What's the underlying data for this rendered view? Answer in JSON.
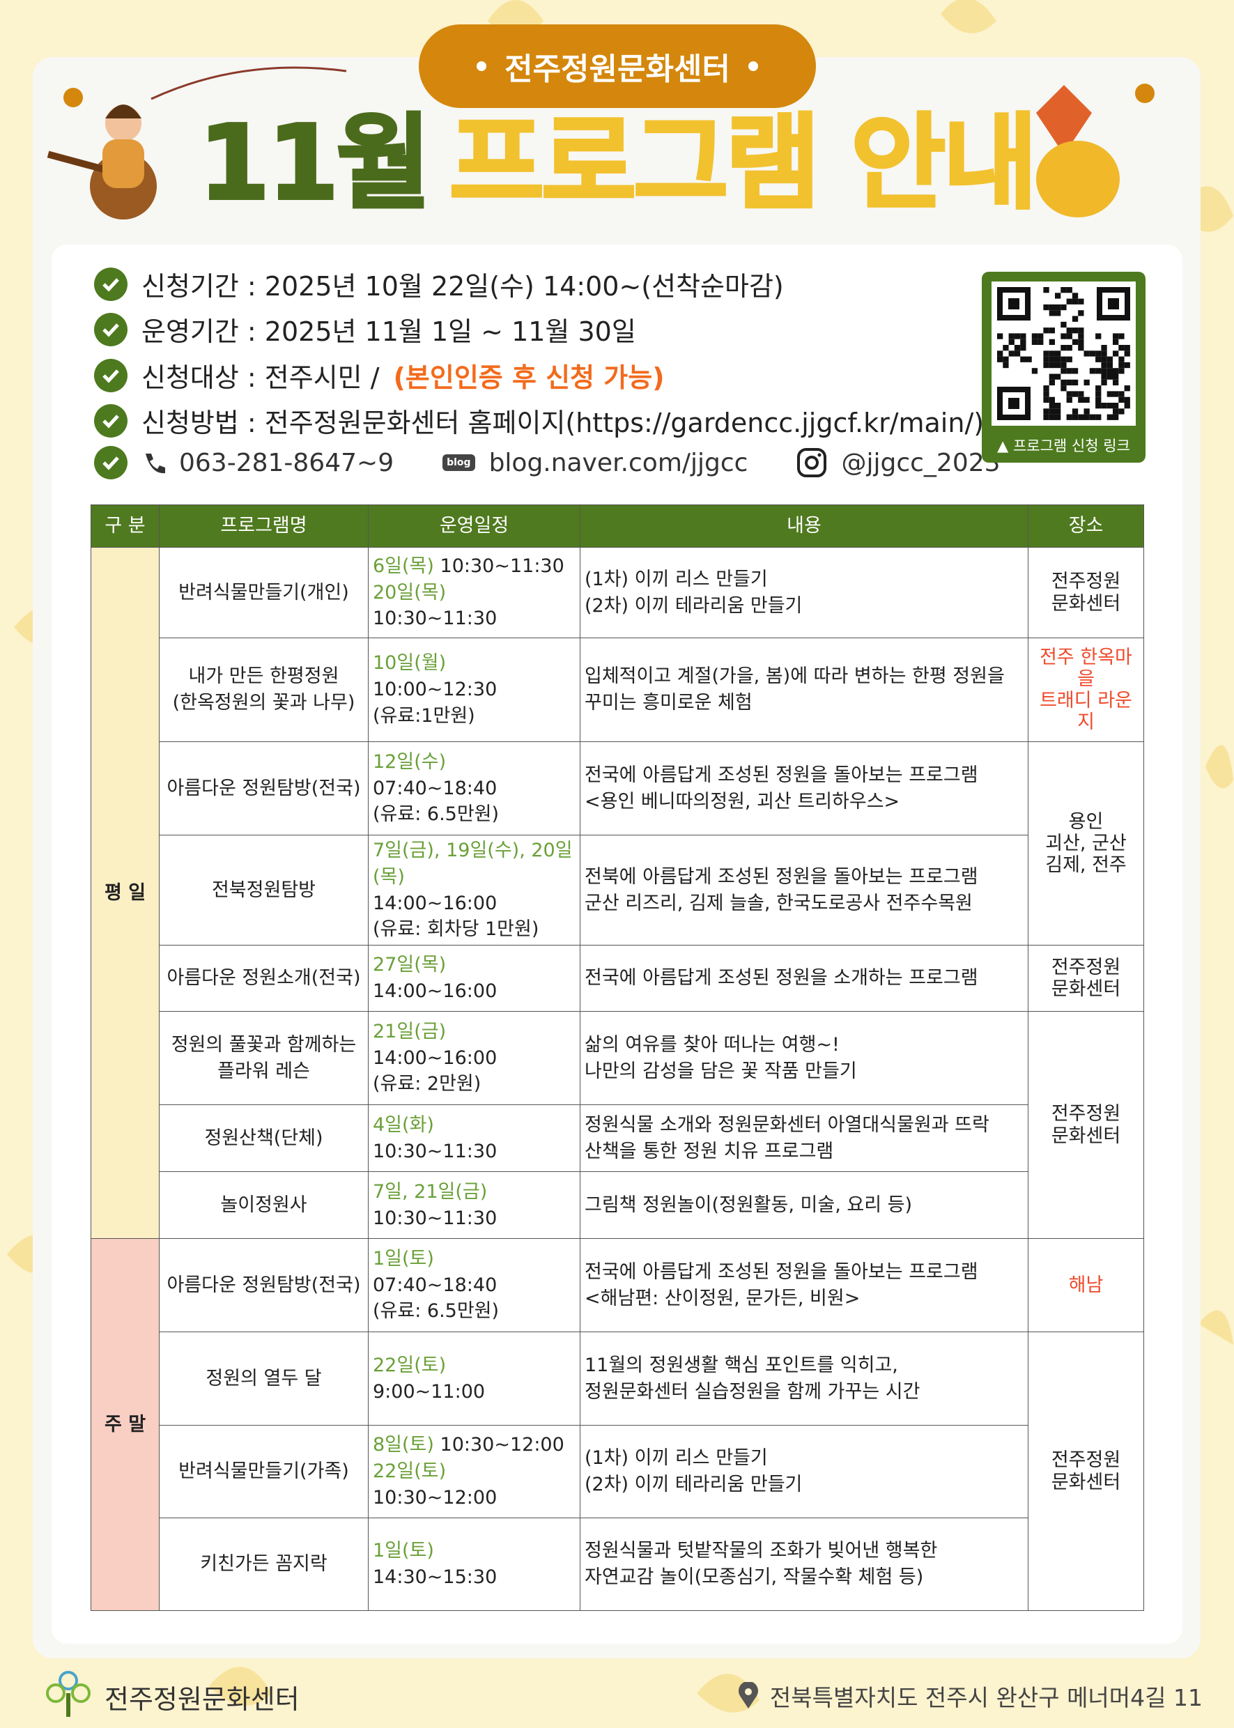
{
  "header": {
    "badge": "전주정원문화센터",
    "title_month": "11월",
    "title_rest": "프로그램 안내"
  },
  "info": [
    {
      "text": "신청기간 : 2025년 10월 22일(수) 14:00~(선착순마감)"
    },
    {
      "text": "운영기간 : 2025년 11월 1일 ~ 11월 30일"
    },
    {
      "text": "신청대상 : 전주시민 /",
      "note": "(본인인증 후 신청 가능)"
    },
    {
      "text": "신청방법 : 전주정원문화센터 홈페이지(https://gardencc.jjgcf.kr/main/)"
    }
  ],
  "contacts": {
    "phone": "063-281-8647~9",
    "blog_icon": "blog",
    "blog": "blog.naver.com/jjgcc",
    "instagram": "@jjgcc_2023"
  },
  "qr_caption": "▲ 프로그램 신청 링크",
  "table": {
    "header": [
      "구 분",
      "프로그램명",
      "운영일정",
      "내용",
      "장소"
    ],
    "groups": [
      {
        "label": "평 일",
        "rows": [
          {
            "name": [
              "반려식물만들기(개인)"
            ],
            "schedule": [
              {
                "date": "6일(목)",
                "text": "10:30~11:30"
              },
              {
                "date": "20일(목)",
                "text": "10:30~11:30"
              }
            ],
            "content": [
              "(1차)  이끼 리스 만들기",
              "(2차)  이끼 테라리움 만들기"
            ],
            "place": {
              "lines": [
                "전주정원",
                "문화센터"
              ]
            }
          },
          {
            "name": [
              "내가 만든 한평정원",
              "(한옥정원의 꽃과 나무)"
            ],
            "schedule": [
              {
                "date": "10일(월)"
              },
              {
                "text": "10:00~12:30"
              },
              {
                "text": "(유료:1만원)"
              }
            ],
            "content": [
              "입체적이고 계절(가을, 봄)에 따라 변하는 한평 정원을",
              "꾸미는 흥미로운 체험"
            ],
            "place": {
              "lines": [
                "전주 한옥마을",
                "트래디 라운지"
              ],
              "color": "#ef4b2c"
            }
          },
          {
            "name": [
              "아름다운 정원탐방(전국)"
            ],
            "schedule": [
              {
                "date": "12일(수)"
              },
              {
                "text": "07:40~18:40"
              },
              {
                "text": "(유료: 6.5만원)"
              }
            ],
            "content": [
              "전국에 아름답게 조성된 정원을 돌아보는 프로그램",
              "<용인 베니따의정원, 괴산 트리하우스>"
            ],
            "place": {
              "lines": [
                "용인",
                "괴산, 군산",
                "김제, 전주"
              ]
            }
          },
          {
            "name": [
              "전북정원탐방"
            ],
            "schedule": [
              {
                "date": "7일(금), 19일(수), 20일(목)"
              },
              {
                "text": "14:00~16:00"
              },
              {
                "text": "(유료: 회차당 1만원)"
              }
            ],
            "content": [
              "전북에 아름답게 조성된 정원을 돌아보는 프로그램",
              "군산 리즈리, 김제 늘솔, 한국도로공사 전주수목원"
            ],
            "place": null
          },
          {
            "name": [
              "아름다운 정원소개(전국)"
            ],
            "schedule": [
              {
                "date": "27일(목)"
              },
              {
                "text": "14:00~16:00"
              }
            ],
            "content": [
              "전국에 아름답게 조성된 정원을 소개하는 프로그램"
            ],
            "place": {
              "lines": [
                "전주정원",
                "문화센터"
              ]
            }
          },
          {
            "name": [
              "정원의 풀꽃과 함께하는",
              "플라워 레슨"
            ],
            "schedule": [
              {
                "date": "21일(금)"
              },
              {
                "text": "14:00~16:00"
              },
              {
                "text": "(유료: 2만원)"
              }
            ],
            "content": [
              "삶의 여유를 찾아 떠나는 여행~!",
              "나만의 감성을 담은 꽃 작품 만들기"
            ],
            "place": {
              "lines": [
                "전주정원",
                "문화센터"
              ]
            }
          },
          {
            "name": [
              "정원산책(단체)"
            ],
            "schedule": [
              {
                "date": "4일(화)"
              },
              {
                "text": "10:30~11:30"
              }
            ],
            "content": [
              "정원식물 소개와 정원문화센터 아열대식물원과 뜨락",
              "산책을 통한 정원 치유 프로그램"
            ],
            "place": null
          },
          {
            "name": [
              "놀이정원사"
            ],
            "schedule": [
              {
                "date": "7일, 21일(금)"
              },
              {
                "text": "10:30~11:30"
              }
            ],
            "content": [
              "그림책 정원놀이(정원활동, 미술, 요리 등)"
            ],
            "place": null
          }
        ]
      },
      {
        "label": "주 말",
        "rows": [
          {
            "name": [
              "아름다운 정원탐방(전국)"
            ],
            "schedule": [
              {
                "date": "1일(토)"
              },
              {
                "text": "07:40~18:40"
              },
              {
                "text": "(유료: 6.5만원)"
              }
            ],
            "content": [
              "전국에 아름답게 조성된 정원을 돌아보는 프로그램",
              "<해남편: 산이정원, 문가든, 비원>"
            ],
            "place": {
              "lines": [
                "해남"
              ],
              "color": "#ef4b2c"
            }
          },
          {
            "name": [
              "정원의 열두 달"
            ],
            "schedule": [
              {
                "date": "22일(토)"
              },
              {
                "text": "9:00~11:00"
              }
            ],
            "content": [
              "11월의 정원생활 핵심 포인트를 익히고,",
              "정원문화센터 실습정원을 함께 가꾸는 시간"
            ],
            "place": {
              "lines": [
                "전주정원",
                "문화센터"
              ]
            }
          },
          {
            "name": [
              "반려식물만들기(가족)"
            ],
            "schedule": [
              {
                "date": "8일(토)",
                "text": "10:30~12:00"
              },
              {
                "date": "22일(토)",
                "text": "10:30~12:00"
              }
            ],
            "content": [
              "(1차) 이끼 리스 만들기",
              "(2차) 이끼 테라리움 만들기"
            ],
            "place": null
          },
          {
            "name": [
              "키친가든 꼼지락"
            ],
            "schedule": [
              {
                "date": "1일(토)"
              },
              {
                "text": "14:30~15:30"
              }
            ],
            "content": [
              "정원식물과 텃밭작물의 조화가 빚어낸 행복한",
              "자연교감 놀이(모종심기, 작물수확 체험 등)"
            ],
            "place": null
          }
        ]
      }
    ]
  },
  "footer": {
    "org": "전주정원문화센터",
    "address": "전북특별자치도 전주시 완산구 메너머4길 11"
  }
}
